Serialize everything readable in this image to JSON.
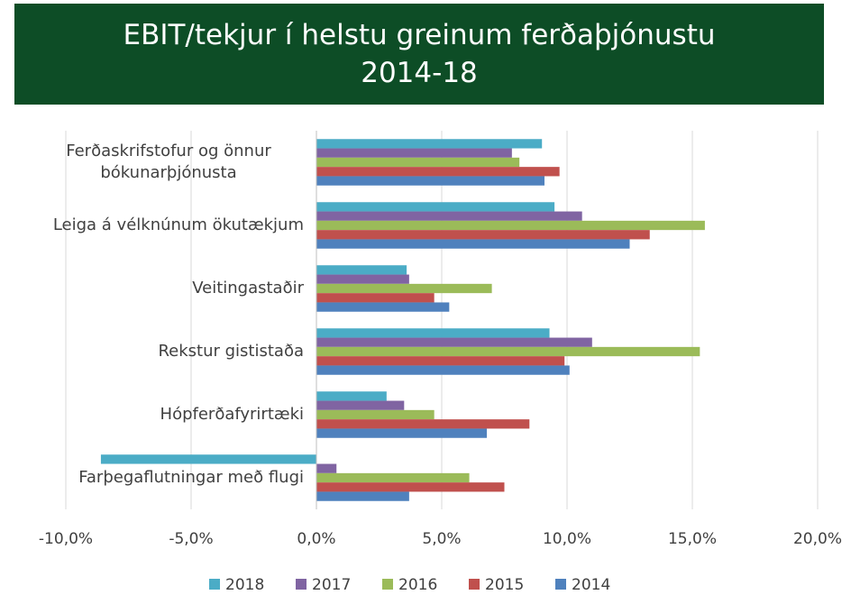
{
  "chart_data": {
    "type": "bar",
    "orientation": "horizontal",
    "title": [
      "EBIT/tekjur í helstu greinum ferðaþjónustu",
      "2014-18"
    ],
    "categories": [
      "Ferðaskrifstofur og önnur bókunarþjónusta",
      "Leiga á vélknúnum ökutækjum",
      "Veitingastaðir",
      "Rekstur gististaða",
      "Hópferðafyrirtæki",
      "Farþegaflutningar með flugi"
    ],
    "series": [
      {
        "name": "2018",
        "color": "#4bacc6",
        "values": [
          9.0,
          9.5,
          3.6,
          9.3,
          2.8,
          -8.6
        ]
      },
      {
        "name": "2017",
        "color": "#8064a2",
        "values": [
          7.8,
          10.6,
          3.7,
          11.0,
          3.5,
          0.8
        ]
      },
      {
        "name": "2016",
        "color": "#9bbb59",
        "values": [
          8.1,
          15.5,
          7.0,
          15.3,
          4.7,
          6.1
        ]
      },
      {
        "name": "2015",
        "color": "#c0504d",
        "values": [
          9.7,
          13.3,
          4.7,
          9.9,
          8.5,
          7.5
        ]
      },
      {
        "name": "2014",
        "color": "#4f81bd",
        "values": [
          9.1,
          12.5,
          5.3,
          10.1,
          6.8,
          3.7
        ]
      }
    ],
    "xlim": [
      -10,
      20
    ],
    "xticks": [
      {
        "value": -10,
        "label": "-10,0%"
      },
      {
        "value": -5,
        "label": "-5,0%"
      },
      {
        "value": 0,
        "label": "0,0%"
      },
      {
        "value": 5,
        "label": "5,0%"
      },
      {
        "value": 10,
        "label": "10,0%"
      },
      {
        "value": 15,
        "label": "15,0%"
      },
      {
        "value": 20,
        "label": "20,0%"
      }
    ],
    "grid": true,
    "legend": "bottom"
  }
}
